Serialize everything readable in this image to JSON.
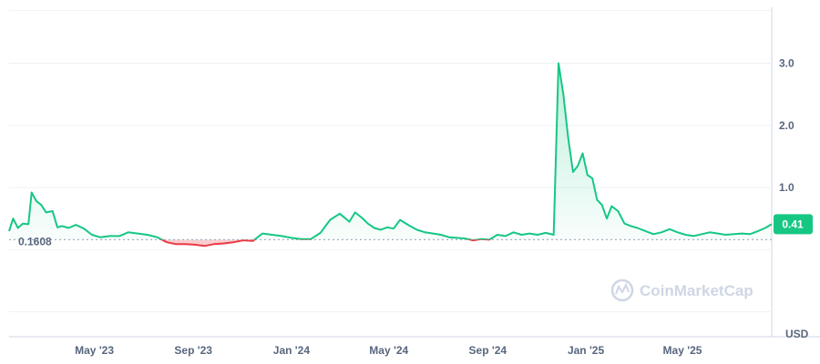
{
  "chart_data": {
    "type": "area",
    "ylim": [
      -1.4,
      3.9
    ],
    "yticks": [
      1.0,
      2.0,
      3.0
    ],
    "ytick_labels": [
      "1.0",
      "2.0",
      "3.0"
    ],
    "xtick_labels": [
      "May '23",
      "Sep '23",
      "Jan '24",
      "May '24",
      "Sep '24",
      "Jan '25",
      "May '25"
    ],
    "xtick_dates": [
      "2023-05-01",
      "2023-09-01",
      "2024-01-01",
      "2024-05-01",
      "2024-09-01",
      "2025-01-01",
      "2025-05-01"
    ],
    "x_range": [
      "2023-01-15",
      "2025-08-20"
    ],
    "baseline": 0.1608,
    "baseline_label": "0.1608",
    "current_price": 0.41,
    "current_price_label": "0.41",
    "currency_label": "USD",
    "up_color": "#16c784",
    "down_color": "#ea3943",
    "series": [
      {
        "x": [
          "2023-01-15",
          "2023-01-20",
          "2023-01-26",
          "2023-02-01",
          "2023-02-08",
          "2023-02-12",
          "2023-02-18",
          "2023-02-24",
          "2023-03-02",
          "2023-03-10",
          "2023-03-16",
          "2023-03-22",
          "2023-03-30",
          "2023-04-08",
          "2023-04-18",
          "2023-04-28",
          "2023-05-08",
          "2023-05-20",
          "2023-06-01",
          "2023-06-12",
          "2023-06-24",
          "2023-07-06",
          "2023-07-18",
          "2023-07-30",
          "2023-08-10",
          "2023-08-22",
          "2023-09-03",
          "2023-09-15",
          "2023-09-27",
          "2023-10-09",
          "2023-10-21",
          "2023-11-02",
          "2023-11-14",
          "2023-11-26",
          "2023-12-08",
          "2023-12-20",
          "2024-01-01",
          "2024-01-13",
          "2024-01-25",
          "2024-02-06",
          "2024-02-18",
          "2024-03-01",
          "2024-03-13",
          "2024-03-20",
          "2024-03-28",
          "2024-04-05",
          "2024-04-13",
          "2024-04-21",
          "2024-04-29",
          "2024-05-07",
          "2024-05-15",
          "2024-05-25",
          "2024-06-05",
          "2024-06-15",
          "2024-06-25",
          "2024-07-05",
          "2024-07-15",
          "2024-07-25",
          "2024-08-04",
          "2024-08-14",
          "2024-08-24",
          "2024-09-03",
          "2024-09-13",
          "2024-09-23",
          "2024-10-03",
          "2024-10-13",
          "2024-10-23",
          "2024-11-02",
          "2024-11-12",
          "2024-11-22",
          "2024-11-28",
          "2024-12-04",
          "2024-12-10",
          "2024-12-16",
          "2024-12-22",
          "2024-12-28",
          "2025-01-03",
          "2025-01-09",
          "2025-01-15",
          "2025-01-21",
          "2025-01-27",
          "2025-02-02",
          "2025-02-10",
          "2025-02-18",
          "2025-02-26",
          "2025-03-06",
          "2025-03-16",
          "2025-03-26",
          "2025-04-05",
          "2025-04-15",
          "2025-04-25",
          "2025-05-05",
          "2025-05-15",
          "2025-05-25",
          "2025-06-04",
          "2025-06-14",
          "2025-06-24",
          "2025-07-04",
          "2025-07-14",
          "2025-07-24",
          "2025-08-03",
          "2025-08-12",
          "2025-08-20"
        ],
        "y": [
          0.3,
          0.5,
          0.35,
          0.42,
          0.41,
          0.92,
          0.78,
          0.72,
          0.6,
          0.62,
          0.36,
          0.38,
          0.35,
          0.4,
          0.34,
          0.24,
          0.2,
          0.22,
          0.22,
          0.28,
          0.26,
          0.24,
          0.2,
          0.12,
          0.09,
          0.09,
          0.08,
          0.06,
          0.09,
          0.1,
          0.12,
          0.15,
          0.14,
          0.26,
          0.24,
          0.22,
          0.19,
          0.17,
          0.17,
          0.27,
          0.48,
          0.58,
          0.45,
          0.6,
          0.52,
          0.42,
          0.35,
          0.32,
          0.36,
          0.34,
          0.48,
          0.4,
          0.32,
          0.28,
          0.26,
          0.24,
          0.2,
          0.19,
          0.18,
          0.15,
          0.17,
          0.16,
          0.24,
          0.22,
          0.28,
          0.24,
          0.26,
          0.24,
          0.27,
          0.24,
          3.0,
          2.5,
          1.8,
          1.25,
          1.35,
          1.55,
          1.2,
          1.15,
          0.8,
          0.72,
          0.5,
          0.7,
          0.62,
          0.42,
          0.38,
          0.35,
          0.3,
          0.25,
          0.28,
          0.33,
          0.28,
          0.24,
          0.22,
          0.25,
          0.28,
          0.26,
          0.24,
          0.25,
          0.26,
          0.25,
          0.3,
          0.35,
          0.41
        ]
      }
    ]
  },
  "watermark": "CoinMarketCap"
}
